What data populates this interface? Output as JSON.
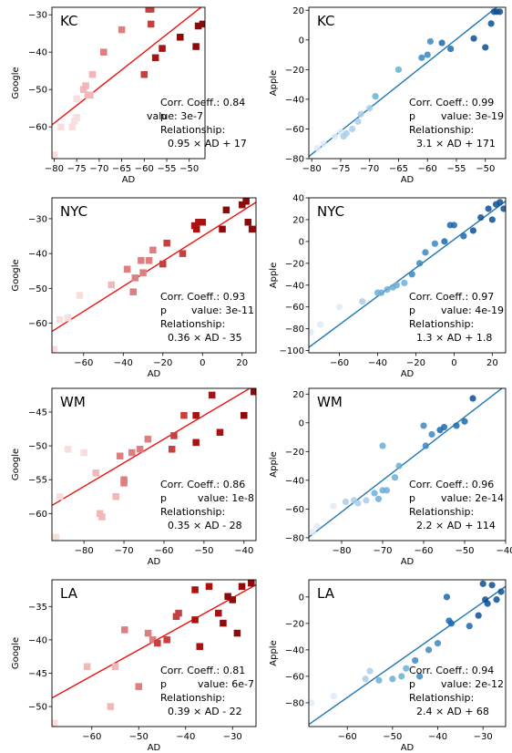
{
  "chart_data": [
    {
      "type": "scatter",
      "name": "KC",
      "ylabel": "Google",
      "xlabel": "AD",
      "xlim": [
        -80.5,
        -46.5
      ],
      "ylim": [
        -68.5,
        -28
      ],
      "xticks": [
        -80,
        -75,
        -70,
        -65,
        -60,
        -55,
        -50
      ],
      "yticks": [
        -60,
        -50,
        -40,
        -30
      ],
      "marker": "square",
      "color": "#cc1010",
      "stats": {
        "corr": "Corr. Coeff.: 0.84",
        "p_label": "p",
        "p_value": "value: 3e-7",
        "rel_label": "Relationship:",
        "relationship": "0.95 × AD + 17"
      },
      "fit": {
        "slope": 0.95,
        "intercept": 17
      },
      "points": [
        [
          -80,
          -67.5
        ],
        [
          -78.5,
          -60
        ],
        [
          -76,
          -60
        ],
        [
          -75.5,
          -58.5
        ],
        [
          -75,
          -57.5
        ],
        [
          -75,
          -52.5
        ],
        [
          -73.5,
          -50
        ],
        [
          -73,
          -49
        ],
        [
          -72.5,
          -51.5
        ],
        [
          -72,
          -51.5
        ],
        [
          -71.5,
          -46
        ],
        [
          -69,
          -40
        ],
        [
          -65,
          -34
        ],
        [
          -60,
          -46
        ],
        [
          -59,
          -28.5
        ],
        [
          -58.5,
          -28.5
        ],
        [
          -58.5,
          -32.5
        ],
        [
          -57.5,
          -41.5
        ],
        [
          -56,
          -39
        ],
        [
          -52,
          -36
        ],
        [
          -48.5,
          -38.5
        ],
        [
          -48,
          -33
        ],
        [
          -47,
          -32.5
        ]
      ]
    },
    {
      "type": "scatter",
      "name": "KC",
      "ylabel": "Apple",
      "xlabel": "AD",
      "xlim": [
        -80.5,
        -46.5
      ],
      "ylim": [
        -80,
        22
      ],
      "xticks": [
        -80,
        -75,
        -70,
        -65,
        -60,
        -55,
        -50
      ],
      "yticks": [
        -80,
        -60,
        -40,
        -20,
        0,
        20
      ],
      "marker": "circle",
      "color": "#1f77b4",
      "stats": {
        "corr": "Corr. Coeff.: 0.99",
        "p_label": "p",
        "p_value": "value: 3e-19",
        "rel_label": "Relationship:",
        "relationship": "3.1 × AD + 171"
      },
      "fit": {
        "slope": 3.1,
        "intercept": 171
      },
      "points": [
        [
          -79,
          -73
        ],
        [
          -78,
          -70
        ],
        [
          -76,
          -65
        ],
        [
          -75,
          -62
        ],
        [
          -74.5,
          -65
        ],
        [
          -74,
          -63
        ],
        [
          -73,
          -60
        ],
        [
          -72,
          -55
        ],
        [
          -71.5,
          -50
        ],
        [
          -70,
          -46
        ],
        [
          -69,
          -38
        ],
        [
          -65,
          -20
        ],
        [
          -61,
          -12
        ],
        [
          -60,
          -10
        ],
        [
          -59.5,
          -1
        ],
        [
          -57.5,
          -2
        ],
        [
          -56,
          -6
        ],
        [
          -52,
          1
        ],
        [
          -50,
          -5
        ],
        [
          -49,
          11
        ],
        [
          -48.5,
          19
        ],
        [
          -48,
          19
        ],
        [
          -47.5,
          19
        ]
      ]
    },
    {
      "type": "scatter",
      "name": "NYC",
      "ylabel": "Google",
      "xlabel": "AD",
      "xlim": [
        -76,
        27
      ],
      "ylim": [
        -68.5,
        -24
      ],
      "xticks": [
        -60,
        -40,
        -20,
        0,
        20
      ],
      "yticks": [
        -60,
        -50,
        -40,
        -30
      ],
      "marker": "square",
      "color": "#cc1010",
      "stats": {
        "corr": "Corr. Coeff.: 0.93",
        "p_label": "p",
        "p_value": "value: 3e-11",
        "rel_label": "Relationship:",
        "relationship": "0.36 × AD - 35"
      },
      "fit": {
        "slope": 0.36,
        "intercept": -35
      },
      "points": [
        [
          -75,
          -67.5
        ],
        [
          -72,
          -59
        ],
        [
          -68,
          -58.5
        ],
        [
          -62,
          -52
        ],
        [
          -46,
          -49
        ],
        [
          -38,
          -44.5
        ],
        [
          -35,
          -51
        ],
        [
          -34,
          -47
        ],
        [
          -31,
          -42
        ],
        [
          -30,
          -45.5
        ],
        [
          -27,
          -42
        ],
        [
          -25,
          -39
        ],
        [
          -20,
          -43
        ],
        [
          -18,
          -37
        ],
        [
          -10,
          -40
        ],
        [
          -4,
          -32
        ],
        [
          -3,
          -33
        ],
        [
          -2,
          -31
        ],
        [
          0,
          -31
        ],
        [
          10,
          -33
        ],
        [
          12,
          -27.5
        ],
        [
          20,
          -26
        ],
        [
          22,
          -25
        ],
        [
          23,
          -31
        ],
        [
          25,
          -33
        ]
      ]
    },
    {
      "type": "scatter",
      "name": "NYC",
      "ylabel": "Apple",
      "xlabel": "AD",
      "xlim": [
        -76,
        27
      ],
      "ylim": [
        -102,
        40
      ],
      "xticks": [
        -60,
        -40,
        -20,
        0,
        20
      ],
      "yticks": [
        -100,
        -80,
        -60,
        -40,
        -20,
        0,
        20,
        40
      ],
      "marker": "circle",
      "color": "#1f77b4",
      "stats": {
        "corr": "Corr. Coeff.: 0.97",
        "p_label": "p",
        "p_value": "value: 4e-19",
        "rel_label": "Relationship:",
        "relationship": "1.3 × AD + 1.8"
      },
      "fit": {
        "slope": 1.3,
        "intercept": 1.8
      },
      "points": [
        [
          -75,
          -83
        ],
        [
          -70,
          -76
        ],
        [
          -60,
          -60
        ],
        [
          -48,
          -55
        ],
        [
          -40,
          -47
        ],
        [
          -38,
          -47
        ],
        [
          -35,
          -44
        ],
        [
          -32,
          -42
        ],
        [
          -30,
          -40
        ],
        [
          -26,
          -38
        ],
        [
          -22,
          -30
        ],
        [
          -18,
          -20
        ],
        [
          -15,
          -10
        ],
        [
          -10,
          -2
        ],
        [
          -5,
          0
        ],
        [
          -2,
          15
        ],
        [
          0,
          15
        ],
        [
          5,
          5
        ],
        [
          10,
          10
        ],
        [
          14,
          22
        ],
        [
          18,
          30
        ],
        [
          20,
          20
        ],
        [
          22,
          34
        ],
        [
          24,
          36
        ],
        [
          26,
          30
        ]
      ]
    },
    {
      "type": "scatter",
      "name": "WM",
      "ylabel": "Google",
      "xlabel": "AD",
      "xlim": [
        -88,
        -37
      ],
      "ylim": [
        -64,
        -41.5
      ],
      "xticks": [
        -80,
        -70,
        -60,
        -50,
        -40
      ],
      "yticks": [
        -60,
        -55,
        -50,
        -45
      ],
      "marker": "square",
      "color": "#cc1010",
      "stats": {
        "corr": "Corr. Coeff.: 0.86",
        "p_label": "p",
        "p_value": "value: 1e-8",
        "rel_label": "Relationship:",
        "relationship": "0.35 × AD - 28"
      },
      "fit": {
        "slope": 0.35,
        "intercept": -28
      },
      "points": [
        [
          -87,
          -63.5
        ],
        [
          -86,
          -57.5
        ],
        [
          -84,
          -50.5
        ],
        [
          -80,
          -51
        ],
        [
          -77,
          -54
        ],
        [
          -76,
          -60
        ],
        [
          -75.5,
          -60.5
        ],
        [
          -72,
          -57.5
        ],
        [
          -71,
          -51.5
        ],
        [
          -70,
          -55
        ],
        [
          -70,
          -55.5
        ],
        [
          -68,
          -51
        ],
        [
          -66,
          -50.5
        ],
        [
          -64,
          -49
        ],
        [
          -58,
          -50.5
        ],
        [
          -57.5,
          -48.5
        ],
        [
          -55,
          -45.5
        ],
        [
          -52,
          -45.5
        ],
        [
          -52,
          -49.5
        ],
        [
          -48,
          -42.5
        ],
        [
          -46,
          -48
        ],
        [
          -40,
          -45.5
        ],
        [
          -37.5,
          -42
        ]
      ]
    },
    {
      "type": "scatter",
      "name": "WM",
      "ylabel": "Apple",
      "xlabel": "AD",
      "xlim": [
        -88,
        -40
      ],
      "ylim": [
        -82,
        24
      ],
      "xticks": [
        -80,
        -70,
        -60,
        -50,
        -40
      ],
      "yticks": [
        -80,
        -60,
        -40,
        -20,
        0,
        20
      ],
      "marker": "circle",
      "color": "#1f77b4",
      "stats": {
        "corr": "Corr. Coeff.: 0.96",
        "p_label": "p",
        "p_value": "value: 2e-14",
        "rel_label": "Relationship:",
        "relationship": "2.2 × AD + 114"
      },
      "fit": {
        "slope": 2.2,
        "intercept": 114
      },
      "points": [
        [
          -87,
          -76
        ],
        [
          -86,
          -72
        ],
        [
          -82,
          -58
        ],
        [
          -79,
          -55
        ],
        [
          -77,
          -54
        ],
        [
          -76,
          -56
        ],
        [
          -74,
          -54
        ],
        [
          -72,
          -49
        ],
        [
          -71,
          -53
        ],
        [
          -70,
          -47
        ],
        [
          -70,
          -16
        ],
        [
          -69,
          -47
        ],
        [
          -67,
          -38
        ],
        [
          -66,
          -30
        ],
        [
          -60,
          -2
        ],
        [
          -59.5,
          -16
        ],
        [
          -58,
          -8
        ],
        [
          -56,
          -5
        ],
        [
          -55,
          -3
        ],
        [
          -52,
          -2
        ],
        [
          -50,
          1
        ],
        [
          -48,
          17
        ],
        [
          -41,
          26
        ]
      ]
    },
    {
      "type": "scatter",
      "name": "LA",
      "ylabel": "Google",
      "xlabel": "AD",
      "xlim": [
        -68.5,
        -25
      ],
      "ylim": [
        -53,
        -31
      ],
      "xticks": [
        -60,
        -50,
        -40,
        -30
      ],
      "yticks": [
        -50,
        -45,
        -40,
        -35
      ],
      "marker": "square",
      "color": "#cc1010",
      "stats": {
        "corr": "Corr. Coeff.: 0.81",
        "p_label": "p",
        "p_value": "value: 6e-7",
        "rel_label": "Relationship:",
        "relationship": "0.39 × AD - 22"
      },
      "fit": {
        "slope": 0.39,
        "intercept": -22
      },
      "points": [
        [
          -68,
          -52.5
        ],
        [
          -61,
          -44
        ],
        [
          -56,
          -50
        ],
        [
          -55,
          -44
        ],
        [
          -53,
          -38.5
        ],
        [
          -50,
          -47
        ],
        [
          -48,
          -39
        ],
        [
          -47,
          -40
        ],
        [
          -46,
          -40.5
        ],
        [
          -44,
          -40
        ],
        [
          -42,
          -36.5
        ],
        [
          -41.5,
          -36
        ],
        [
          -38,
          -32.5
        ],
        [
          -38,
          -37
        ],
        [
          -37,
          -41
        ],
        [
          -35,
          -32
        ],
        [
          -33,
          -36
        ],
        [
          -32,
          -37.5
        ],
        [
          -31,
          -33.5
        ],
        [
          -30,
          -34
        ],
        [
          -29,
          -39
        ],
        [
          -28,
          -32
        ],
        [
          -26,
          -31.5
        ]
      ]
    },
    {
      "type": "scatter",
      "name": "LA",
      "ylabel": "Apple",
      "xlabel": "AD",
      "xlim": [
        -68.5,
        -25
      ],
      "ylim": [
        -98,
        13
      ],
      "xticks": [
        -60,
        -50,
        -40,
        -30
      ],
      "yticks": [
        -80,
        -60,
        -40,
        -20,
        0
      ],
      "marker": "circle",
      "color": "#1f77b4",
      "stats": {
        "corr": "Corr. Coeff.: 0.94",
        "p_label": "p",
        "p_value": "value: 2e-12",
        "rel_label": "Relationship:",
        "relationship": "2.4 × AD + 68"
      },
      "fit": {
        "slope": 2.4,
        "intercept": 68
      },
      "points": [
        [
          -68,
          -80
        ],
        [
          -63,
          -75
        ],
        [
          -56,
          -62
        ],
        [
          -55,
          -56
        ],
        [
          -53,
          -63
        ],
        [
          -50,
          -62
        ],
        [
          -48,
          -60
        ],
        [
          -47,
          -54
        ],
        [
          -45,
          -48
        ],
        [
          -44,
          -60
        ],
        [
          -42,
          -40
        ],
        [
          -40,
          -35
        ],
        [
          -38,
          0
        ],
        [
          -37.5,
          -18
        ],
        [
          -37,
          -20
        ],
        [
          -33,
          -22
        ],
        [
          -31,
          -14
        ],
        [
          -30,
          10
        ],
        [
          -29.5,
          -2
        ],
        [
          -29,
          -5
        ],
        [
          -28,
          9
        ],
        [
          -27,
          -2
        ],
        [
          -26,
          4
        ]
      ]
    }
  ]
}
